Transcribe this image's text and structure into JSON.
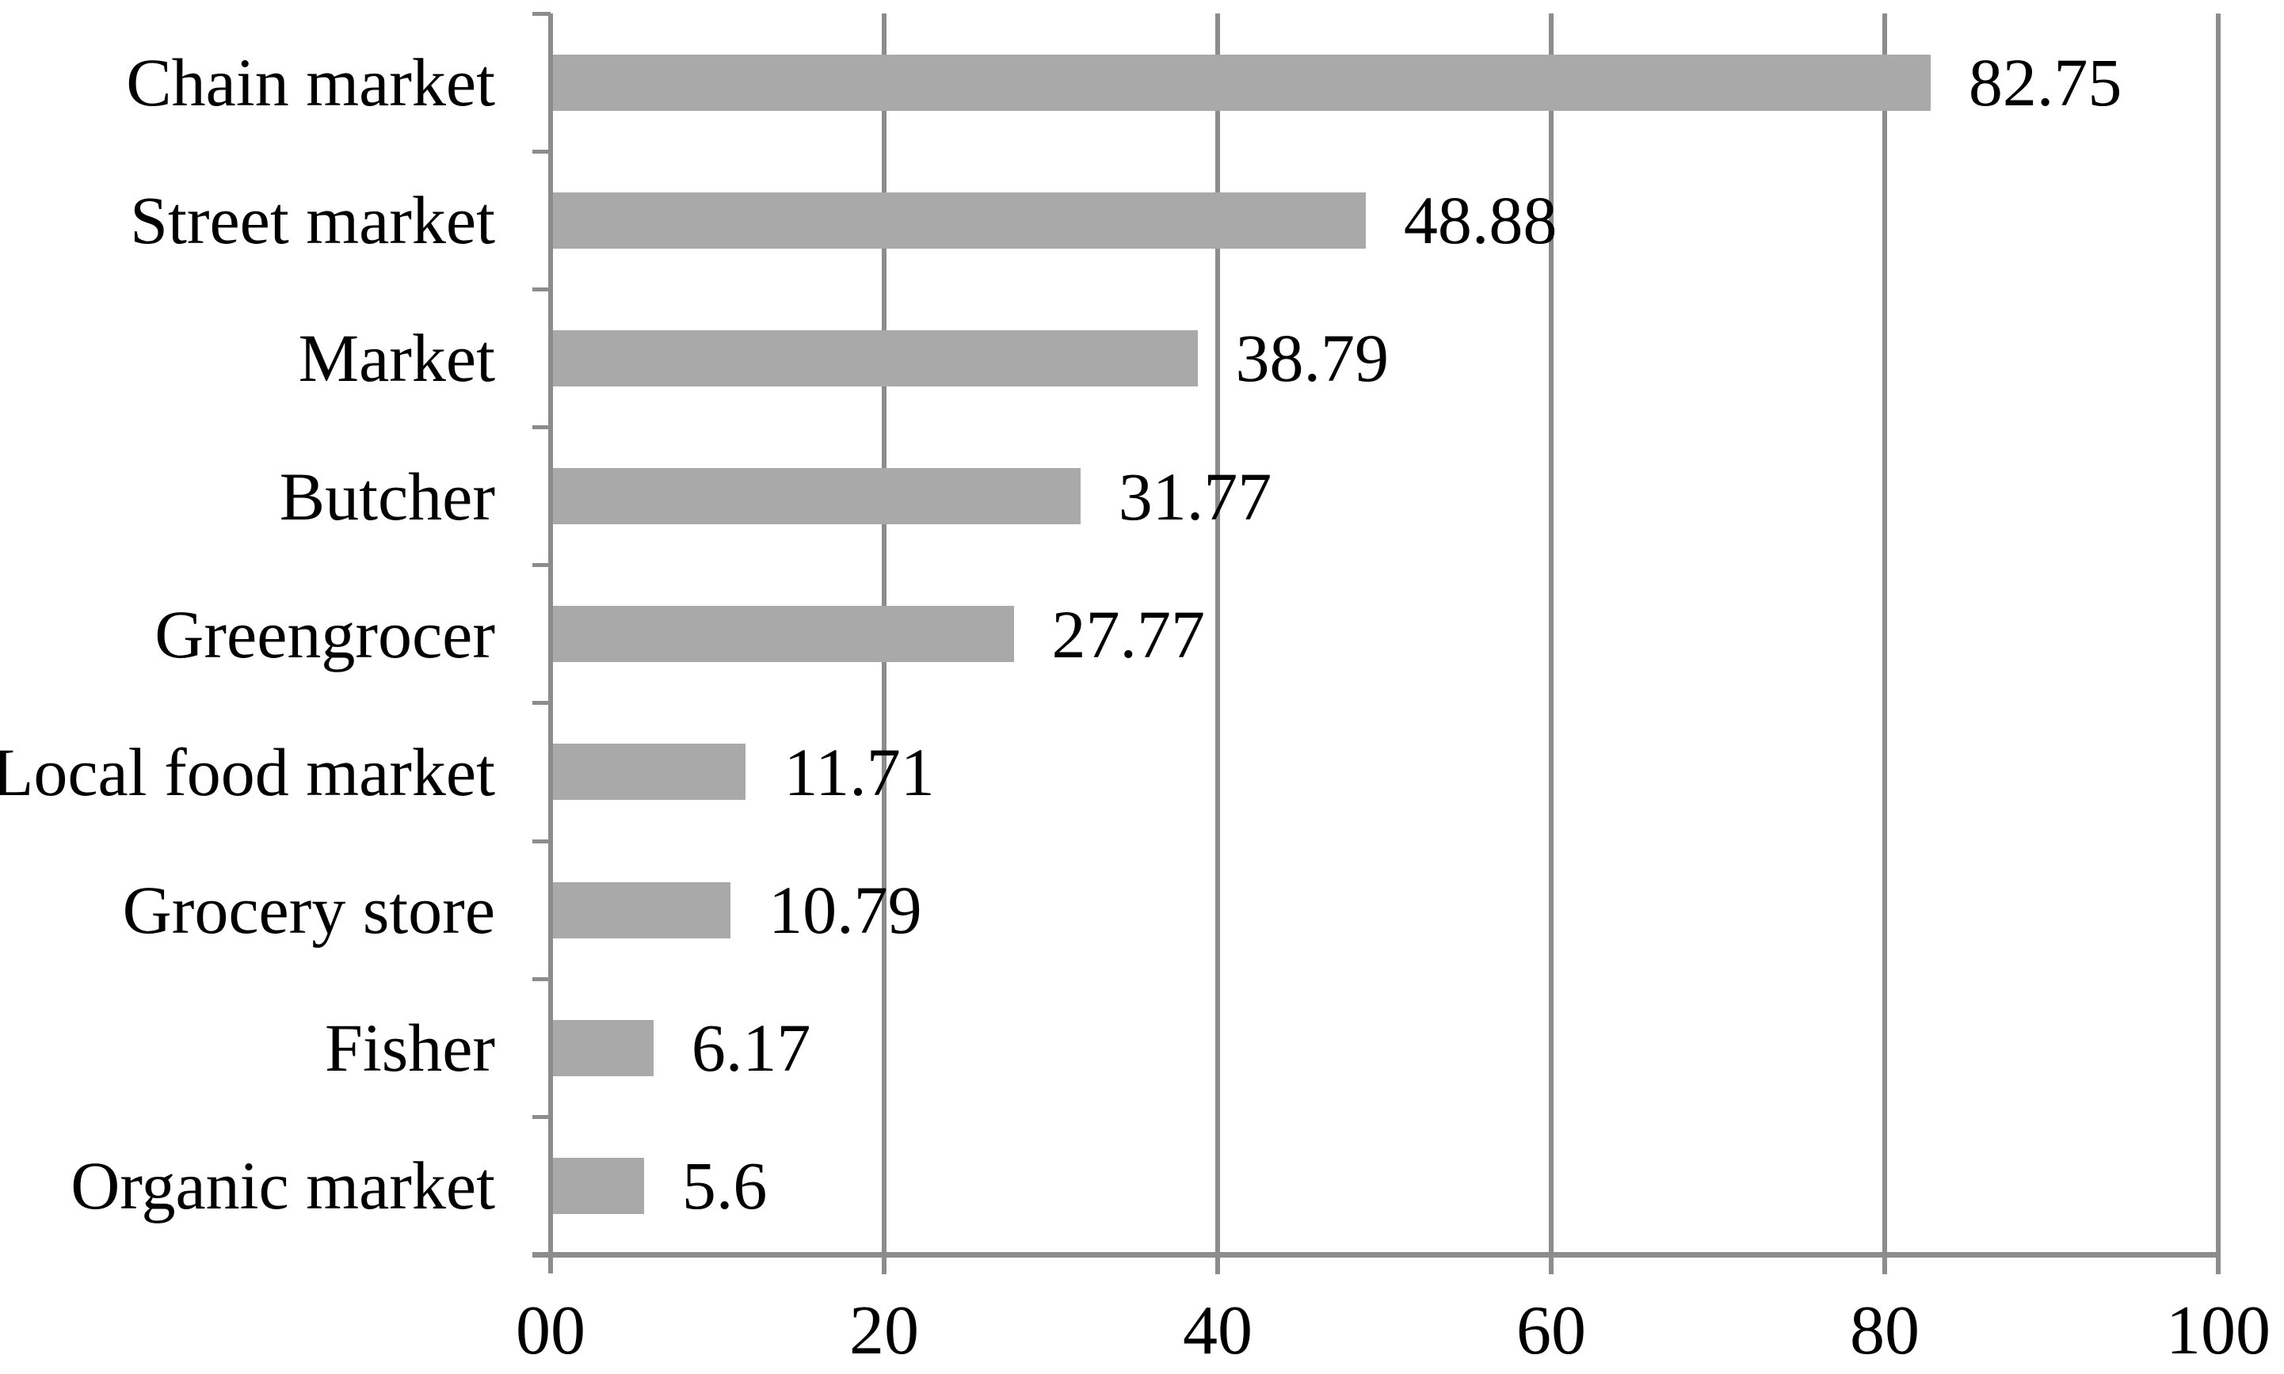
{
  "chart_data": {
    "type": "bar",
    "orientation": "horizontal",
    "title": "",
    "categories": [
      "Chain market",
      "Street market",
      "Market",
      "Butcher",
      "Greengrocer",
      "Local food market",
      "Grocery store",
      "Fisher",
      "Organic market"
    ],
    "values": [
      82.75,
      48.88,
      38.79,
      31.77,
      27.77,
      11.71,
      10.79,
      6.17,
      5.6
    ],
    "value_labels": [
      "82.75",
      "48.88",
      "38.79",
      "31.77",
      "27.77",
      "11.71",
      "10.79",
      "6.17",
      "5.6"
    ],
    "xlim": [
      0,
      100
    ],
    "x_tick_values": [
      0,
      20,
      40,
      60,
      80,
      100
    ],
    "x_tick_labels": [
      "00",
      "20",
      "40",
      "60",
      "80",
      "100"
    ],
    "grid": "vertical-gridlines-on",
    "legend": "none",
    "colors": {
      "bar_fill": "#a9a9a9",
      "axis_and_grid": "#8c8c8c",
      "text": "#000000",
      "background": "#ffffff"
    }
  }
}
